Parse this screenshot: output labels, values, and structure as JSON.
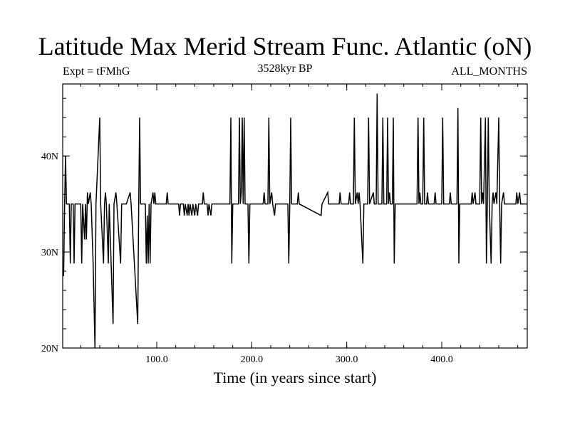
{
  "chart_data": {
    "type": "line",
    "title": "Latitude Max Merid Stream Func. Atlantic (oN)",
    "left_label": "Expt = tFMhG",
    "center_label": "3528kyr BP",
    "right_label": "ALL_MONTHS",
    "xlabel": "Time (in years since start)",
    "ylabel": "",
    "xlim": [
      1,
      490
    ],
    "ylim": [
      20,
      47.5
    ],
    "xticks": [
      {
        "value": 100,
        "label": "100.0"
      },
      {
        "value": 200,
        "label": "200.0"
      },
      {
        "value": 300,
        "label": "300.0"
      },
      {
        "value": 400,
        "label": "400.0"
      }
    ],
    "yticks": [
      {
        "value": 20,
        "label": "20N"
      },
      {
        "value": 30,
        "label": "30N"
      },
      {
        "value": 40,
        "label": "40N"
      }
    ],
    "baseline": 35,
    "series": [
      {
        "events": [
          [
            1,
            28
          ],
          [
            2,
            27.5
          ],
          [
            3,
            35
          ],
          [
            4,
            40
          ],
          [
            5,
            35
          ],
          [
            8,
            35
          ],
          [
            9,
            28.8
          ],
          [
            10,
            35
          ],
          [
            12,
            35
          ],
          [
            13,
            28.8
          ],
          [
            14,
            35
          ],
          [
            20,
            35
          ],
          [
            21,
            28.8
          ],
          [
            22,
            35
          ],
          [
            24,
            31.3
          ],
          [
            25,
            35
          ],
          [
            26,
            31.3
          ],
          [
            27,
            36.2
          ],
          [
            28,
            35
          ],
          [
            30,
            36.2
          ],
          [
            31,
            35
          ],
          [
            33,
            28.8
          ],
          [
            35,
            20
          ],
          [
            36,
            35
          ],
          [
            40,
            44
          ],
          [
            41,
            35
          ],
          [
            44,
            28.8
          ],
          [
            45,
            35
          ],
          [
            46,
            36.2
          ],
          [
            47,
            35
          ],
          [
            49,
            28.8
          ],
          [
            50,
            35
          ],
          [
            54,
            22.5
          ],
          [
            55,
            35
          ],
          [
            57,
            36.2
          ],
          [
            58,
            35
          ],
          [
            62,
            28.8
          ],
          [
            63,
            35
          ],
          [
            68,
            35
          ],
          [
            72,
            36.2
          ],
          [
            73,
            35
          ],
          [
            80,
            22.5
          ],
          [
            81,
            35
          ],
          [
            82,
            44
          ],
          [
            83,
            35
          ],
          [
            88,
            35
          ],
          [
            89,
            28.8
          ],
          [
            90,
            33.8
          ],
          [
            91,
            28.8
          ],
          [
            92,
            35
          ],
          [
            93,
            28.8
          ],
          [
            94,
            35
          ],
          [
            96,
            36.2
          ],
          [
            97,
            35
          ],
          [
            98,
            36.2
          ],
          [
            99,
            35
          ],
          [
            110,
            35
          ],
          [
            111,
            36.2
          ],
          [
            112,
            35
          ],
          [
            123,
            35
          ],
          [
            124,
            33.8
          ],
          [
            125,
            35
          ],
          [
            128,
            35
          ],
          [
            129,
            33.8
          ],
          [
            130,
            35
          ],
          [
            132,
            33.8
          ],
          [
            133,
            35
          ],
          [
            134,
            33.8
          ],
          [
            135,
            35
          ],
          [
            137,
            33.8
          ],
          [
            138,
            35
          ],
          [
            140,
            33.8
          ],
          [
            141,
            35
          ],
          [
            143,
            33.8
          ],
          [
            144,
            35
          ],
          [
            148,
            35
          ],
          [
            149,
            36.2
          ],
          [
            150,
            35
          ],
          [
            153,
            35
          ],
          [
            154,
            33.8
          ],
          [
            155,
            35
          ],
          [
            157,
            33.8
          ],
          [
            158,
            35
          ],
          [
            177,
            35
          ],
          [
            178,
            44
          ],
          [
            179,
            28.8
          ],
          [
            180,
            35
          ],
          [
            186,
            35
          ],
          [
            187,
            44
          ],
          [
            188,
            35
          ],
          [
            189,
            36.2
          ],
          [
            190,
            44
          ],
          [
            191,
            35
          ],
          [
            192,
            44
          ],
          [
            193,
            35
          ],
          [
            196,
            35
          ],
          [
            197,
            28.8
          ],
          [
            198,
            35
          ],
          [
            212,
            35
          ],
          [
            213,
            36.2
          ],
          [
            214,
            35
          ],
          [
            217,
            35
          ],
          [
            218,
            44
          ],
          [
            219,
            35
          ],
          [
            221,
            36.2
          ],
          [
            222,
            35
          ],
          [
            224,
            33.8
          ],
          [
            225,
            35
          ],
          [
            238,
            35
          ],
          [
            239,
            28.8
          ],
          [
            240,
            35
          ],
          [
            241,
            44
          ],
          [
            242,
            35
          ],
          [
            248,
            35
          ],
          [
            249,
            36.2
          ],
          [
            250,
            35
          ],
          [
            273,
            33.8
          ],
          [
            274,
            35
          ],
          [
            280,
            36.2
          ],
          [
            281,
            35
          ],
          [
            292,
            35
          ],
          [
            293,
            36.2
          ],
          [
            294,
            35
          ],
          [
            302,
            35
          ],
          [
            303,
            36.2
          ],
          [
            304,
            35
          ],
          [
            307,
            35
          ],
          [
            308,
            44
          ],
          [
            309,
            35
          ],
          [
            311,
            36.2
          ],
          [
            312,
            35
          ],
          [
            313,
            36.2
          ],
          [
            314,
            35
          ],
          [
            317,
            28.8
          ],
          [
            318,
            35
          ],
          [
            322,
            35
          ],
          [
            323,
            44
          ],
          [
            324,
            35
          ],
          [
            328,
            36.2
          ],
          [
            329,
            35
          ],
          [
            331,
            35
          ],
          [
            332,
            46.5
          ],
          [
            333,
            35
          ],
          [
            337,
            35
          ],
          [
            338,
            44
          ],
          [
            339,
            35
          ],
          [
            342,
            35
          ],
          [
            343,
            44
          ],
          [
            344,
            35
          ],
          [
            345,
            36.2
          ],
          [
            346,
            35
          ],
          [
            348,
            35
          ],
          [
            349,
            44
          ],
          [
            350,
            28.8
          ],
          [
            351,
            35
          ],
          [
            374,
            35
          ],
          [
            375,
            44
          ],
          [
            376,
            35
          ],
          [
            377,
            36.2
          ],
          [
            378,
            35
          ],
          [
            380,
            35
          ],
          [
            381,
            44
          ],
          [
            382,
            35
          ],
          [
            384,
            35
          ],
          [
            385,
            36.2
          ],
          [
            386,
            35
          ],
          [
            392,
            35
          ],
          [
            393,
            36.2
          ],
          [
            394,
            35
          ],
          [
            400,
            35
          ],
          [
            401,
            44
          ],
          [
            402,
            35
          ],
          [
            408,
            35
          ],
          [
            409,
            36.2
          ],
          [
            410,
            35
          ],
          [
            416,
            35
          ],
          [
            417,
            45
          ],
          [
            418,
            28.8
          ],
          [
            419,
            35
          ],
          [
            431,
            35
          ],
          [
            432,
            36.2
          ],
          [
            433,
            35
          ],
          [
            435,
            36.2
          ],
          [
            436,
            35
          ],
          [
            440,
            35
          ],
          [
            441,
            44
          ],
          [
            442,
            35
          ],
          [
            443,
            36.2
          ],
          [
            444,
            35
          ],
          [
            446,
            44
          ],
          [
            447,
            28.8
          ],
          [
            448,
            35
          ],
          [
            449,
            44
          ],
          [
            450,
            35
          ],
          [
            452,
            28.8
          ],
          [
            453,
            35
          ],
          [
            454,
            36.2
          ],
          [
            455,
            35
          ],
          [
            457,
            36.2
          ],
          [
            458,
            35
          ],
          [
            460,
            44
          ],
          [
            461,
            35
          ],
          [
            462,
            28.8
          ],
          [
            463,
            35
          ],
          [
            465,
            36.2
          ],
          [
            466,
            35
          ],
          [
            478,
            35
          ],
          [
            479,
            36.2
          ],
          [
            480,
            35
          ],
          [
            482,
            36.2
          ],
          [
            483,
            35
          ],
          [
            490,
            35
          ]
        ]
      }
    ]
  }
}
